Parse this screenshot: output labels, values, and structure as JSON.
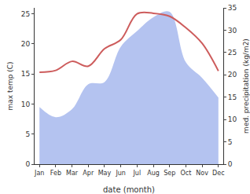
{
  "chart_data": {
    "type": "line",
    "xlabel": "date (month)",
    "ylabel": "max temp (C)",
    "y2label": "med. precipitation (kg/m2)",
    "categories": [
      "Jan",
      "Feb",
      "Mar",
      "Apr",
      "May",
      "Jun",
      "Jul",
      "Aug",
      "Sep",
      "Oct",
      "Nov",
      "Dec"
    ],
    "series": [
      {
        "type": "line",
        "color": "#cd5c5c",
        "axis": "y",
        "values": [
          15.3,
          15.6,
          17.1,
          16.3,
          19.2,
          20.7,
          25.0,
          25.1,
          24.6,
          22.7,
          20.1,
          15.5
        ]
      },
      {
        "type": "area",
        "color": "#b4c3f0",
        "axis": "y2",
        "values": [
          12.8,
          10.5,
          12.3,
          17.9,
          18.4,
          26.3,
          29.8,
          32.9,
          34.1,
          22.8,
          19.3,
          14.9
        ]
      }
    ],
    "ylim": [
      0,
      26
    ],
    "yticks": [
      0,
      5,
      10,
      15,
      20,
      25
    ],
    "y2lim": [
      0,
      35
    ],
    "y2ticks": [
      0,
      5,
      10,
      15,
      20,
      25,
      30,
      35
    ],
    "grid": false
  }
}
